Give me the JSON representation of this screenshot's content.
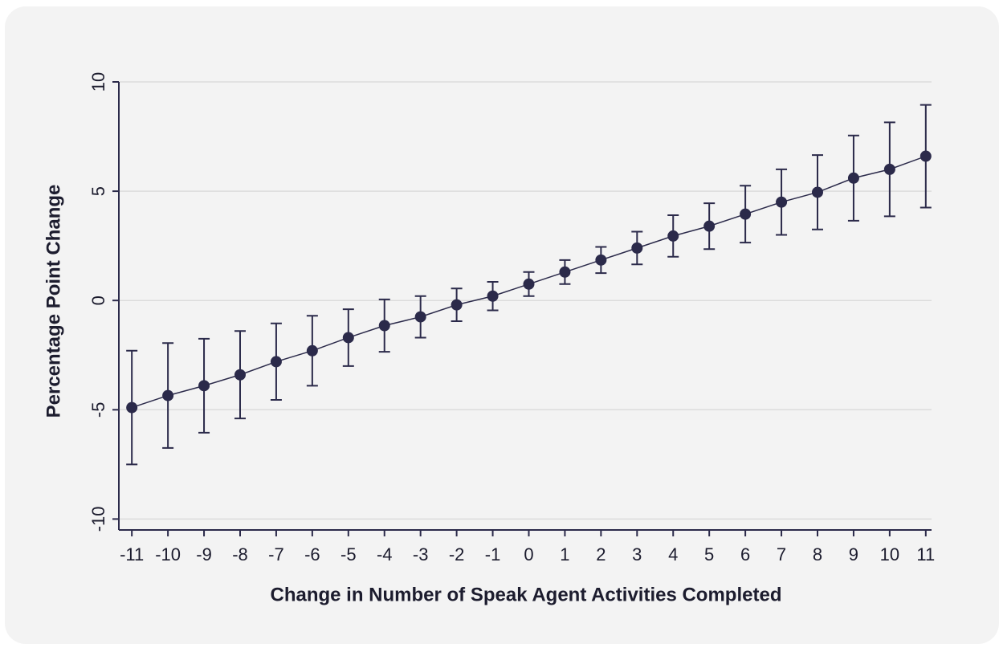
{
  "chart_data": {
    "type": "line",
    "x_label": "Change in Number of Speak Agent Activities Completed",
    "y_label": "Percentage Point Change",
    "x": [
      -11,
      -10,
      -9,
      -8,
      -7,
      -6,
      -5,
      -4,
      -3,
      -2,
      -1,
      0,
      1,
      2,
      3,
      4,
      5,
      6,
      7,
      8,
      9,
      10,
      11
    ],
    "series": [
      {
        "color": "#2b2a4a",
        "values": [
          -4.9,
          -4.35,
          -3.9,
          -3.4,
          -2.8,
          -2.3,
          -1.7,
          -1.15,
          -0.75,
          -0.2,
          0.2,
          0.75,
          1.3,
          1.85,
          2.4,
          2.95,
          3.4,
          3.95,
          4.5,
          4.95,
          5.6,
          6.0,
          6.6
        ],
        "errors": [
          2.6,
          2.4,
          2.15,
          2.0,
          1.75,
          1.6,
          1.3,
          1.2,
          0.95,
          0.75,
          0.65,
          0.55,
          0.55,
          0.6,
          0.75,
          0.95,
          1.05,
          1.3,
          1.5,
          1.7,
          1.95,
          2.15,
          2.35
        ]
      }
    ],
    "xlim": [
      -11.36,
      11.16
    ],
    "xticks": [
      -11,
      -10,
      -9,
      -8,
      -7,
      -6,
      -5,
      -4,
      -3,
      -2,
      -1,
      0,
      1,
      2,
      3,
      4,
      5,
      6,
      7,
      8,
      9,
      10,
      11
    ],
    "ylim": [
      -10.5,
      10
    ],
    "yticks": [
      -10,
      -5,
      0,
      5,
      10
    ],
    "grid": true
  }
}
